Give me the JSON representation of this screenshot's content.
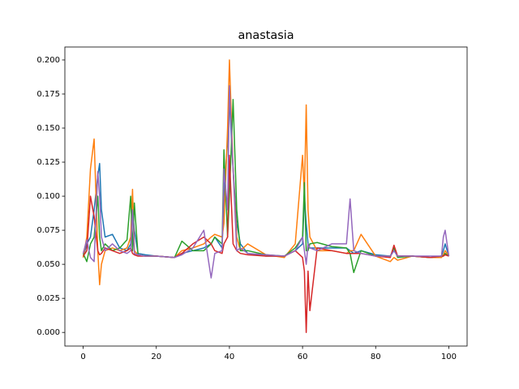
{
  "chart_data": {
    "type": "line",
    "title": "anastasia",
    "x": [
      0,
      1,
      2,
      3,
      4,
      4.5,
      5,
      6,
      8,
      10,
      12,
      13,
      13.5,
      14,
      15,
      17,
      20,
      25,
      27,
      30,
      33,
      35,
      36,
      38,
      38.5,
      39.5,
      40,
      41,
      42,
      43,
      45,
      50,
      55,
      58,
      60,
      60.5,
      61,
      61.5,
      62,
      64,
      68,
      72,
      73,
      74,
      76,
      80,
      84,
      85,
      86,
      90,
      95,
      98,
      98.5,
      99,
      100
    ],
    "series": [
      {
        "color": "#1f77b4",
        "values": [
          0.055,
          0.065,
          0.07,
          0.09,
          0.115,
          0.124,
          0.09,
          0.07,
          0.072,
          0.062,
          0.06,
          0.065,
          0.09,
          0.075,
          0.058,
          0.057,
          0.056,
          0.055,
          0.058,
          0.06,
          0.062,
          0.065,
          0.07,
          0.062,
          0.1,
          0.14,
          0.17,
          0.12,
          0.08,
          0.065,
          0.058,
          0.056,
          0.056,
          0.06,
          0.065,
          0.1,
          0.08,
          0.065,
          0.062,
          0.062,
          0.062,
          0.062,
          0.06,
          0.058,
          0.06,
          0.057,
          0.056,
          0.06,
          0.056,
          0.056,
          0.055,
          0.056,
          0.06,
          0.065,
          0.056
        ]
      },
      {
        "color": "#ff7f0e",
        "values": [
          0.055,
          0.07,
          0.12,
          0.142,
          0.06,
          0.035,
          0.05,
          0.06,
          0.062,
          0.06,
          0.062,
          0.07,
          0.105,
          0.06,
          0.057,
          0.056,
          0.056,
          0.055,
          0.06,
          0.062,
          0.065,
          0.07,
          0.072,
          0.07,
          0.08,
          0.15,
          0.2,
          0.12,
          0.07,
          0.06,
          0.065,
          0.057,
          0.055,
          0.065,
          0.13,
          0.1,
          0.167,
          0.09,
          0.07,
          0.06,
          0.06,
          0.058,
          0.06,
          0.06,
          0.072,
          0.056,
          0.052,
          0.055,
          0.053,
          0.056,
          0.055,
          0.055,
          0.057,
          0.06,
          0.056
        ]
      },
      {
        "color": "#2ca02c",
        "values": [
          0.058,
          0.052,
          0.065,
          0.07,
          0.1,
          0.07,
          0.06,
          0.065,
          0.06,
          0.062,
          0.068,
          0.1,
          0.06,
          0.095,
          0.057,
          0.056,
          0.056,
          0.055,
          0.067,
          0.06,
          0.06,
          0.065,
          0.07,
          0.065,
          0.134,
          0.07,
          0.1,
          0.171,
          0.09,
          0.06,
          0.06,
          0.057,
          0.056,
          0.062,
          0.07,
          0.11,
          0.06,
          0.06,
          0.065,
          0.066,
          0.063,
          0.062,
          0.058,
          0.044,
          0.06,
          0.056,
          0.056,
          0.062,
          0.055,
          0.056,
          0.055,
          0.056,
          0.056,
          0.058,
          0.056
        ]
      },
      {
        "color": "#d62728",
        "values": [
          0.056,
          0.06,
          0.1,
          0.085,
          0.06,
          0.057,
          0.058,
          0.062,
          0.06,
          0.058,
          0.06,
          0.062,
          0.058,
          0.057,
          0.056,
          0.056,
          0.056,
          0.055,
          0.058,
          0.065,
          0.07,
          0.065,
          0.06,
          0.058,
          0.065,
          0.07,
          0.13,
          0.065,
          0.06,
          0.058,
          0.057,
          0.056,
          0.056,
          0.06,
          0.055,
          0.045,
          0,
          0.045,
          0.016,
          0.062,
          0.06,
          0.058,
          0.058,
          0.058,
          0.058,
          0.056,
          0.055,
          0.064,
          0.056,
          0.056,
          0.055,
          0.056,
          0.056,
          0.057,
          0.056
        ]
      },
      {
        "color": "#9467bd",
        "values": [
          0.058,
          0.068,
          0.055,
          0.052,
          0.118,
          0.1,
          0.07,
          0.06,
          0.065,
          0.06,
          0.058,
          0.06,
          0.09,
          0.058,
          0.057,
          0.056,
          0.056,
          0.055,
          0.057,
          0.062,
          0.075,
          0.04,
          0.058,
          0.06,
          0.12,
          0.09,
          0.181,
          0.12,
          0.06,
          0.062,
          0.058,
          0.057,
          0.056,
          0.06,
          0.07,
          0.06,
          0.05,
          0.065,
          0.062,
          0.06,
          0.065,
          0.065,
          0.098,
          0.06,
          0.058,
          0.056,
          0.056,
          0.06,
          0.056,
          0.056,
          0.056,
          0.056,
          0.07,
          0.075,
          0.056
        ]
      }
    ],
    "xlim": [
      -5,
      105
    ],
    "xticks": [
      0,
      20,
      40,
      60,
      80,
      100
    ],
    "ylim": [
      -0.01,
      0.2095
    ],
    "yticks": [
      {
        "value": 0,
        "label": "0.000"
      },
      {
        "value": 0.025,
        "label": "0.025"
      },
      {
        "value": 0.05,
        "label": "0.050"
      },
      {
        "value": 0.075,
        "label": "0.075"
      },
      {
        "value": 0.1,
        "label": "0.100"
      },
      {
        "value": 0.125,
        "label": "0.125"
      },
      {
        "value": 0.15,
        "label": "0.150"
      },
      {
        "value": 0.175,
        "label": "0.175"
      },
      {
        "value": 0.2,
        "label": "0.200"
      }
    ]
  }
}
